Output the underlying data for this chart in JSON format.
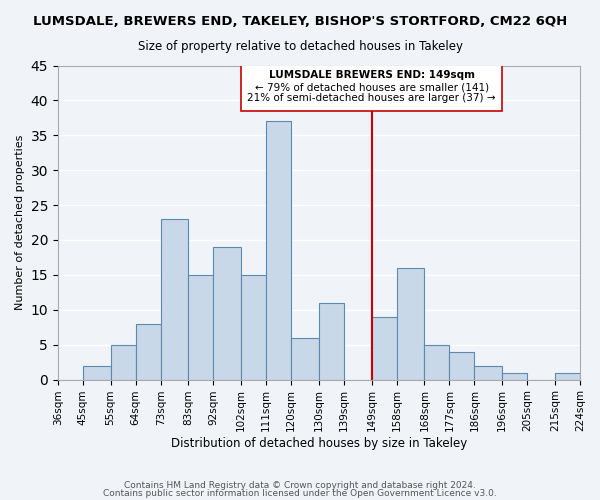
{
  "title": "LUMSDALE, BREWERS END, TAKELEY, BISHOP'S STORTFORD, CM22 6QH",
  "subtitle": "Size of property relative to detached houses in Takeley",
  "xlabel": "Distribution of detached houses by size in Takeley",
  "ylabel": "Number of detached properties",
  "bar_color": "#c8d8e8",
  "bar_edge_color": "#5a8ab0",
  "background_color": "#f0f4f8",
  "grid_color": "white",
  "bins": [
    36,
    45,
    55,
    64,
    73,
    83,
    92,
    102,
    111,
    120,
    130,
    139,
    149,
    158,
    168,
    177,
    186,
    196,
    205,
    215,
    224
  ],
  "bin_labels": [
    "36sqm",
    "45sqm",
    "55sqm",
    "64sqm",
    "73sqm",
    "83sqm",
    "92sqm",
    "102sqm",
    "111sqm",
    "120sqm",
    "130sqm",
    "139sqm",
    "149sqm",
    "158sqm",
    "168sqm",
    "177sqm",
    "186sqm",
    "196sqm",
    "205sqm",
    "215sqm",
    "224sqm"
  ],
  "counts": [
    0,
    2,
    5,
    8,
    23,
    15,
    19,
    15,
    37,
    6,
    11,
    0,
    9,
    16,
    5,
    4,
    2,
    1,
    0,
    1
  ],
  "vline_x": 149,
  "vline_color": "#cc0000",
  "ylim": [
    0,
    45
  ],
  "yticks": [
    0,
    5,
    10,
    15,
    20,
    25,
    30,
    35,
    40,
    45
  ],
  "annotation_title": "LUMSDALE BREWERS END: 149sqm",
  "annotation_line1": "← 79% of detached houses are smaller (141)",
  "annotation_line2": "21% of semi-detached houses are larger (37) →",
  "footnote1": "Contains HM Land Registry data © Crown copyright and database right 2024.",
  "footnote2": "Contains public sector information licensed under the Open Government Licence v3.0."
}
